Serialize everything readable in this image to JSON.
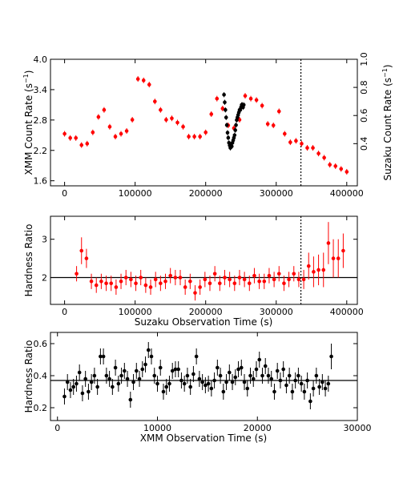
{
  "chart_data": [
    {
      "type": "scatter",
      "xlabel": "",
      "ylabel": "XMM Count Rate (s",
      "ylabel_sup": "−1",
      "ylabel_end": ")",
      "y2label": "Suzaku Count Rate (s",
      "y2label_sup": "−1",
      "y2label_end": ")",
      "xlim": [
        -20000,
        415000
      ],
      "ylim": [
        1.5,
        4.0
      ],
      "y2lim": [
        0.1,
        1.0
      ],
      "xticks": [
        "0",
        "100000",
        "200000",
        "300000",
        "400000"
      ],
      "xtick_values": [
        0,
        100000,
        200000,
        300000,
        400000
      ],
      "yticks": [
        "1.6",
        "2.2",
        "2.8",
        "3.4",
        "4.0"
      ],
      "ytick_values": [
        1.6,
        2.2,
        2.8,
        3.4,
        4.0
      ],
      "y2ticks": [
        "0.4",
        "0.6",
        "0.8",
        "1.0"
      ],
      "y2tick_values": [
        0.4,
        0.6,
        0.8,
        1.0
      ],
      "vline_x": 335000,
      "series": [
        {
          "color": "#ff0000",
          "x": [
            0,
            8000,
            16000,
            24000,
            32000,
            40000,
            48000,
            56000,
            64000,
            72000,
            80000,
            88000,
            96000,
            104000,
            112000,
            120000,
            128000,
            136000,
            144000,
            152000,
            160000,
            168000,
            176000,
            184000,
            192000,
            200000,
            208000,
            216000,
            224000,
            232000,
            240000,
            248000,
            256000,
            264000,
            272000,
            280000,
            288000,
            296000,
            304000,
            312000,
            320000,
            328000,
            336000,
            344000,
            352000,
            360000,
            368000,
            376000,
            384000,
            392000,
            400000
          ],
          "y": [
            0.47,
            0.44,
            0.44,
            0.39,
            0.4,
            0.48,
            0.59,
            0.64,
            0.52,
            0.45,
            0.47,
            0.49,
            0.57,
            0.86,
            0.85,
            0.82,
            0.7,
            0.64,
            0.57,
            0.58,
            0.55,
            0.52,
            0.45,
            0.45,
            0.45,
            0.48,
            0.61,
            0.72,
            0.65,
            0.53,
            0.51,
            0.57,
            0.74,
            0.72,
            0.71,
            0.67,
            0.54,
            0.53,
            0.63,
            0.47,
            0.41,
            0.42,
            0.4,
            0.37,
            0.37,
            0.33,
            0.3,
            0.25,
            0.24,
            0.22,
            0.2
          ],
          "err": [
            0.02,
            0.02,
            0.02,
            0.02,
            0.02,
            0.02,
            0.02,
            0.02,
            0.02,
            0.02,
            0.02,
            0.02,
            0.02,
            0.02,
            0.02,
            0.02,
            0.02,
            0.02,
            0.02,
            0.02,
            0.02,
            0.02,
            0.02,
            0.02,
            0.02,
            0.02,
            0.02,
            0.02,
            0.02,
            0.02,
            0.02,
            0.02,
            0.02,
            0.02,
            0.02,
            0.02,
            0.02,
            0.02,
            0.02,
            0.02,
            0.02,
            0.02,
            0.02,
            0.02,
            0.02,
            0.02,
            0.02,
            0.02,
            0.02,
            0.02,
            0.02
          ]
        },
        {
          "color": "#000000",
          "x": [
            226000,
            227000,
            228000,
            229000,
            230000,
            231000,
            232000,
            233000,
            234000,
            235000,
            236000,
            237000,
            238000,
            239000,
            240000,
            241000,
            242000,
            243000,
            244000,
            245000,
            246000,
            247000,
            248000,
            249000,
            250000,
            251000,
            252000,
            253000,
            254000
          ],
          "y": [
            3.3,
            3.15,
            3.0,
            2.85,
            2.7,
            2.55,
            2.45,
            2.35,
            2.3,
            2.25,
            2.3,
            2.28,
            2.35,
            2.4,
            2.45,
            2.5,
            2.6,
            2.7,
            2.8,
            2.85,
            2.9,
            2.95,
            3.0,
            3.0,
            3.05,
            3.1,
            3.1,
            3.05,
            3.1
          ],
          "err": [
            0.05,
            0.05,
            0.05,
            0.05,
            0.05,
            0.05,
            0.05,
            0.05,
            0.05,
            0.05,
            0.05,
            0.05,
            0.05,
            0.05,
            0.05,
            0.05,
            0.05,
            0.05,
            0.05,
            0.05,
            0.05,
            0.05,
            0.05,
            0.05,
            0.05,
            0.05,
            0.05,
            0.05,
            0.05
          ]
        }
      ]
    },
    {
      "type": "scatter",
      "xlabel": "Suzaku Observation Time (s)",
      "ylabel": "Hardness Ratio",
      "xlim": [
        -20000,
        415000
      ],
      "ylim": [
        1.3,
        3.6
      ],
      "xticks": [
        "0",
        "100000",
        "200000",
        "300000",
        "400000"
      ],
      "xtick_values": [
        0,
        100000,
        200000,
        300000,
        400000
      ],
      "yticks": [
        "2",
        "3"
      ],
      "ytick_values": [
        2,
        3
      ],
      "hline_y": 2.0,
      "vline_x": 335000,
      "series": [
        {
          "color": "#ff0000",
          "x": [
            17000,
            24000,
            31000,
            38000,
            45000,
            52000,
            59000,
            66000,
            73000,
            80000,
            87000,
            94000,
            101000,
            108000,
            115000,
            122000,
            129000,
            136000,
            143000,
            150000,
            157000,
            164000,
            171000,
            178000,
            185000,
            192000,
            199000,
            206000,
            213000,
            220000,
            227000,
            234000,
            241000,
            248000,
            255000,
            262000,
            269000,
            276000,
            283000,
            290000,
            297000,
            304000,
            311000,
            318000,
            325000,
            332000,
            339000,
            346000,
            353000,
            360000,
            367000,
            374000,
            381000,
            388000,
            395000
          ],
          "y": [
            2.1,
            2.7,
            2.5,
            1.9,
            1.8,
            1.9,
            1.85,
            1.85,
            1.75,
            1.9,
            2.0,
            1.95,
            1.85,
            2.0,
            1.8,
            1.75,
            1.95,
            1.85,
            1.9,
            2.05,
            2.0,
            2.0,
            1.75,
            1.9,
            1.6,
            1.75,
            1.95,
            1.85,
            2.1,
            1.85,
            2.0,
            1.95,
            1.85,
            2.0,
            1.95,
            1.85,
            2.05,
            1.9,
            1.9,
            2.05,
            1.95,
            2.1,
            1.85,
            1.95,
            2.1,
            1.95,
            1.95,
            2.3,
            2.15,
            2.2,
            2.2,
            2.9,
            2.5,
            2.5,
            2.7
          ],
          "err": [
            0.2,
            0.35,
            0.25,
            0.2,
            0.2,
            0.2,
            0.2,
            0.2,
            0.2,
            0.2,
            0.2,
            0.2,
            0.2,
            0.2,
            0.2,
            0.2,
            0.2,
            0.2,
            0.2,
            0.2,
            0.2,
            0.2,
            0.2,
            0.2,
            0.2,
            0.2,
            0.2,
            0.2,
            0.2,
            0.2,
            0.2,
            0.2,
            0.2,
            0.2,
            0.2,
            0.2,
            0.2,
            0.2,
            0.2,
            0.2,
            0.2,
            0.2,
            0.2,
            0.2,
            0.2,
            0.2,
            0.25,
            0.35,
            0.4,
            0.4,
            0.45,
            0.55,
            0.5,
            0.5,
            0.45
          ]
        }
      ]
    },
    {
      "type": "scatter",
      "xlabel": "XMM Observation Time (s)",
      "ylabel": "Hardness Ratio",
      "xlim": [
        -700,
        30000
      ],
      "ylim": [
        0.12,
        0.67
      ],
      "xticks": [
        "0",
        "10000",
        "20000",
        "30000"
      ],
      "xtick_values": [
        0,
        10000,
        20000,
        30000
      ],
      "yticks": [
        "0.2",
        "0.4",
        "0.6"
      ],
      "ytick_values": [
        0.2,
        0.4,
        0.6
      ],
      "hline_y": 0.37,
      "series": [
        {
          "color": "#000000",
          "x": [
            700,
            1000,
            1300,
            1600,
            1900,
            2200,
            2500,
            2800,
            3100,
            3400,
            3700,
            4000,
            4300,
            4600,
            4900,
            5200,
            5500,
            5800,
            6100,
            6400,
            6700,
            7000,
            7300,
            7600,
            7900,
            8200,
            8500,
            8800,
            9100,
            9400,
            9700,
            10000,
            10300,
            10600,
            10900,
            11200,
            11500,
            11800,
            12100,
            12400,
            12700,
            13000,
            13300,
            13600,
            13900,
            14200,
            14500,
            14800,
            15100,
            15400,
            15700,
            16000,
            16300,
            16600,
            16900,
            17200,
            17500,
            17800,
            18100,
            18400,
            18700,
            19000,
            19300,
            19600,
            19900,
            20200,
            20500,
            20800,
            21100,
            21400,
            21700,
            22000,
            22300,
            22600,
            22900,
            23200,
            23500,
            23800,
            24100,
            24400,
            24700,
            25000,
            25300,
            25600,
            25900,
            26200,
            26500,
            26800,
            27100,
            27400
          ],
          "y": [
            0.27,
            0.36,
            0.31,
            0.33,
            0.35,
            0.42,
            0.29,
            0.38,
            0.3,
            0.36,
            0.4,
            0.33,
            0.52,
            0.52,
            0.4,
            0.38,
            0.33,
            0.45,
            0.35,
            0.4,
            0.43,
            0.38,
            0.25,
            0.36,
            0.43,
            0.38,
            0.44,
            0.47,
            0.56,
            0.52,
            0.4,
            0.35,
            0.45,
            0.3,
            0.33,
            0.35,
            0.43,
            0.44,
            0.44,
            0.37,
            0.35,
            0.4,
            0.33,
            0.41,
            0.52,
            0.38,
            0.36,
            0.34,
            0.35,
            0.32,
            0.37,
            0.45,
            0.4,
            0.3,
            0.36,
            0.42,
            0.36,
            0.39,
            0.44,
            0.45,
            0.36,
            0.32,
            0.4,
            0.38,
            0.44,
            0.5,
            0.4,
            0.46,
            0.4,
            0.38,
            0.3,
            0.43,
            0.37,
            0.44,
            0.34,
            0.4,
            0.3,
            0.37,
            0.4,
            0.35,
            0.3,
            0.37,
            0.24,
            0.32,
            0.4,
            0.33,
            0.36,
            0.32,
            0.35,
            0.52
          ],
          "err": [
            0.05,
            0.05,
            0.05,
            0.05,
            0.05,
            0.05,
            0.05,
            0.05,
            0.05,
            0.05,
            0.05,
            0.05,
            0.05,
            0.05,
            0.05,
            0.05,
            0.05,
            0.05,
            0.05,
            0.05,
            0.05,
            0.05,
            0.05,
            0.05,
            0.05,
            0.05,
            0.05,
            0.05,
            0.05,
            0.05,
            0.05,
            0.05,
            0.05,
            0.05,
            0.05,
            0.05,
            0.05,
            0.05,
            0.05,
            0.05,
            0.05,
            0.05,
            0.05,
            0.05,
            0.05,
            0.05,
            0.05,
            0.05,
            0.05,
            0.05,
            0.05,
            0.05,
            0.05,
            0.05,
            0.05,
            0.05,
            0.05,
            0.05,
            0.05,
            0.05,
            0.05,
            0.05,
            0.05,
            0.05,
            0.05,
            0.05,
            0.05,
            0.05,
            0.05,
            0.05,
            0.05,
            0.05,
            0.05,
            0.05,
            0.05,
            0.05,
            0.05,
            0.05,
            0.05,
            0.05,
            0.05,
            0.05,
            0.05,
            0.05,
            0.05,
            0.05,
            0.05,
            0.05,
            0.05,
            0.08
          ]
        }
      ]
    }
  ]
}
